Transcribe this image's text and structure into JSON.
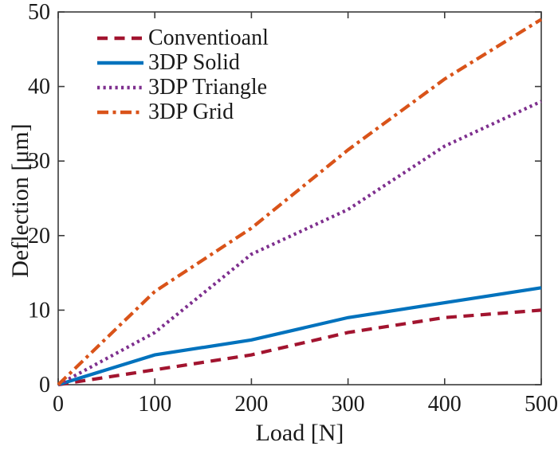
{
  "figure": {
    "background": "#ffffff",
    "text_color": "#1a1a1a",
    "axis_color": "#3b3b3b"
  },
  "chart_data": {
    "type": "line",
    "title": "",
    "xlabel": "Load [N]",
    "ylabel": "Deflection [μm]",
    "xlim": [
      0,
      500
    ],
    "ylim": [
      0,
      50
    ],
    "xticks": [
      0,
      100,
      200,
      300,
      400,
      500
    ],
    "yticks": [
      0,
      10,
      20,
      30,
      40,
      50
    ],
    "grid": false,
    "box": true,
    "legend_position": "top-left-inside",
    "x": [
      0,
      100,
      200,
      300,
      400,
      500
    ],
    "series": [
      {
        "name": "Conventioanl",
        "color": "#A2142F",
        "style": "dashed",
        "values": [
          0,
          2,
          4,
          7,
          9,
          10
        ]
      },
      {
        "name": "3DP Solid",
        "color": "#0072BD",
        "style": "solid",
        "values": [
          0,
          4,
          6,
          9,
          11,
          13
        ]
      },
      {
        "name": "3DP Triangle",
        "color": "#7E2F8E",
        "style": "dotted",
        "values": [
          0,
          7,
          17.5,
          23.5,
          32,
          38
        ]
      },
      {
        "name": "3DP Grid",
        "color": "#D95319",
        "style": "dashdot",
        "values": [
          0,
          12.5,
          21,
          31.5,
          41,
          49
        ]
      }
    ]
  }
}
